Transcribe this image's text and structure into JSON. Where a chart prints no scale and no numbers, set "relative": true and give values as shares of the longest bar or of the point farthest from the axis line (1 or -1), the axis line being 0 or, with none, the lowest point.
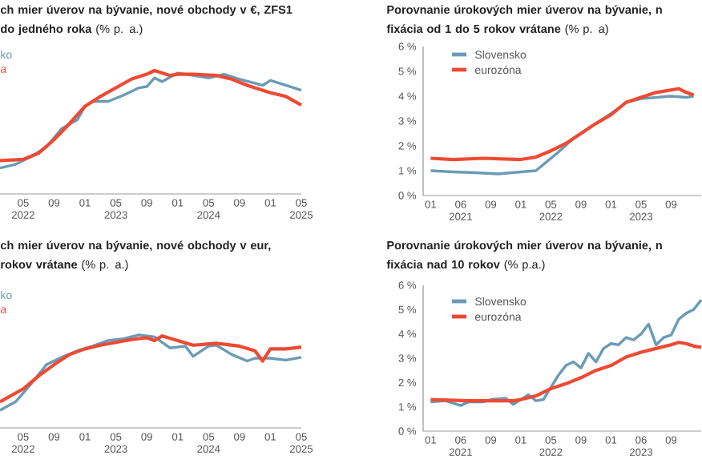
{
  "chart_data": [
    {
      "type": "line",
      "title": "**ch mier úverov na bývanie, nové obchody v €, ZFS1 do jedného roka** (% p. a.)",
      "relative": true,
      "xlim": [
        "2022-02",
        "2025-05"
      ],
      "xticks": [
        {
          "value": "2022-05",
          "label": "05 2022"
        },
        {
          "value": "2022-09",
          "label": "09"
        },
        {
          "value": "2023-01",
          "label": "01"
        },
        {
          "value": "2023-05",
          "label": "05 2023"
        },
        {
          "value": "2023-09",
          "label": "09"
        },
        {
          "value": "2024-01",
          "label": "01"
        },
        {
          "value": "2024-05",
          "label": "05 2024"
        },
        {
          "value": "2024-09",
          "label": "09"
        },
        {
          "value": "2025-01",
          "label": "01"
        },
        {
          "value": "2025-05",
          "label": "05 2025"
        }
      ],
      "series": [
        {
          "name": "ko",
          "color": "#6a9bb5",
          "x": [
            "2022-02",
            "2022-04",
            "2022-06",
            "2022-08",
            "2022-10",
            "2022-12",
            "2023-01",
            "2023-02",
            "2023-04",
            "2023-06",
            "2023-08",
            "2023-09",
            "2023-10",
            "2023-11",
            "2024-01",
            "2024-03",
            "2024-05",
            "2024-07",
            "2024-09",
            "2024-12",
            "2025-01",
            "2025-03",
            "2025-05"
          ],
          "values": [
            0.21,
            0.24,
            0.3,
            0.38,
            0.53,
            0.6,
            0.71,
            0.75,
            0.75,
            0.8,
            0.86,
            0.87,
            0.94,
            0.91,
            0.98,
            0.96,
            0.94,
            0.97,
            0.93,
            0.88,
            0.92,
            0.88,
            0.84
          ]
        },
        {
          "name": "a",
          "color": "#ee4a33",
          "x": [
            "2022-02",
            "2022-05",
            "2022-07",
            "2022-09",
            "2022-11",
            "2023-01",
            "2023-03",
            "2023-05",
            "2023-07",
            "2023-09",
            "2023-10",
            "2023-12",
            "2024-01",
            "2024-03",
            "2024-06",
            "2024-08",
            "2024-10",
            "2025-01",
            "2025-03",
            "2025-05"
          ],
          "values": [
            0.27,
            0.28,
            0.33,
            0.44,
            0.57,
            0.71,
            0.79,
            0.86,
            0.93,
            0.97,
            1.0,
            0.96,
            0.97,
            0.97,
            0.96,
            0.93,
            0.88,
            0.82,
            0.79,
            0.72
          ]
        }
      ]
    },
    {
      "type": "line",
      "title": "**Porovnanie úrokových mier úverov na bývanie, n fixácia od 1 do 5 rokov vrátane** (% p. a)",
      "legend": "top left",
      "xlim": [
        "2020-12",
        "2024-01"
      ],
      "ylim": [
        0,
        6
      ],
      "yticks": [
        {
          "value": 0,
          "label": "0 %"
        },
        {
          "value": 1,
          "label": "1 %"
        },
        {
          "value": 2,
          "label": "2 %"
        },
        {
          "value": 3,
          "label": "3 %"
        },
        {
          "value": 4,
          "label": "4 %"
        },
        {
          "value": 5,
          "label": "5 %"
        },
        {
          "value": 6,
          "label": "6 %"
        }
      ],
      "xticks": [
        {
          "value": "2021-01",
          "label": "01"
        },
        {
          "value": "2021-05",
          "label": "06 2021"
        },
        {
          "value": "2021-09",
          "label": "09"
        },
        {
          "value": "2022-01",
          "label": "01"
        },
        {
          "value": "2022-05",
          "label": "05 2022"
        },
        {
          "value": "2022-09",
          "label": "09"
        },
        {
          "value": "2023-01",
          "label": "01"
        },
        {
          "value": "2023-05",
          "label": "05 2023"
        },
        {
          "value": "2023-09",
          "label": "09"
        }
      ],
      "series": [
        {
          "name": "Slovensko",
          "color": "#6a9bb5",
          "x": [
            "2021-01",
            "2021-04",
            "2021-07",
            "2021-10",
            "2022-01",
            "2022-03",
            "2022-05",
            "2022-06",
            "2022-08",
            "2022-10",
            "2023-01",
            "2023-03",
            "2023-05",
            "2023-07",
            "2023-09",
            "2023-11",
            "2023-12"
          ],
          "values": [
            1.0,
            0.95,
            0.92,
            0.87,
            0.95,
            1.0,
            1.5,
            1.75,
            2.3,
            2.7,
            3.3,
            3.75,
            3.9,
            3.95,
            4.0,
            3.95,
            4.0
          ]
        },
        {
          "name": "eurozóna",
          "color": "#ee4a33",
          "x": [
            "2021-01",
            "2021-04",
            "2021-08",
            "2022-01",
            "2022-03",
            "2022-05",
            "2022-07",
            "2022-09",
            "2022-11",
            "2023-01",
            "2023-03",
            "2023-05",
            "2023-07",
            "2023-09",
            "2023-10",
            "2023-11",
            "2023-12"
          ],
          "values": [
            1.5,
            1.45,
            1.5,
            1.45,
            1.55,
            1.8,
            2.1,
            2.5,
            2.9,
            3.25,
            3.75,
            3.95,
            4.15,
            4.25,
            4.3,
            4.15,
            4.05
          ]
        }
      ]
    },
    {
      "type": "line",
      "title": "**ch mier úverov na bývanie, nové obchody v eur, rokov vrátane** (% p. a.)",
      "relative": true,
      "xlim": [
        "2022-02",
        "2025-05"
      ],
      "xticks": [
        {
          "value": "2022-05",
          "label": "05 2022"
        },
        {
          "value": "2022-09",
          "label": "09"
        },
        {
          "value": "2023-01",
          "label": "01"
        },
        {
          "value": "2023-05",
          "label": "05 2023"
        },
        {
          "value": "2023-09",
          "label": "09"
        },
        {
          "value": "2024-01",
          "label": "01"
        },
        {
          "value": "2024-05",
          "label": "05 2024"
        },
        {
          "value": "2024-09",
          "label": "09"
        },
        {
          "value": "2025-01",
          "label": "01"
        },
        {
          "value": "2025-05",
          "label": "05 2025"
        }
      ],
      "series": [
        {
          "name": "ko",
          "color": "#6a9bb5",
          "x": [
            "2022-02",
            "2022-04",
            "2022-06",
            "2022-08",
            "2022-10",
            "2022-12",
            "2023-02",
            "2023-04",
            "2023-06",
            "2023-08",
            "2023-10",
            "2023-12",
            "2024-02",
            "2024-03",
            "2024-05",
            "2024-06",
            "2024-08",
            "2024-10",
            "2024-11",
            "2025-01",
            "2025-03",
            "2025-05"
          ],
          "values": [
            0.19,
            0.28,
            0.47,
            0.68,
            0.76,
            0.83,
            0.88,
            0.94,
            0.96,
            1.0,
            0.98,
            0.86,
            0.88,
            0.77,
            0.88,
            0.89,
            0.79,
            0.72,
            0.75,
            0.75,
            0.73,
            0.76
          ]
        },
        {
          "name": "a",
          "color": "#ee4a33",
          "x": [
            "2022-02",
            "2022-05",
            "2022-07",
            "2022-09",
            "2022-11",
            "2023-01",
            "2023-03",
            "2023-05",
            "2023-07",
            "2023-09",
            "2023-10",
            "2023-11",
            "2024-01",
            "2024-03",
            "2024-06",
            "2024-09",
            "2024-11",
            "2024-12",
            "2025-01",
            "2025-03",
            "2025-05"
          ],
          "values": [
            0.28,
            0.42,
            0.56,
            0.68,
            0.79,
            0.85,
            0.89,
            0.92,
            0.95,
            0.97,
            0.94,
            0.99,
            0.94,
            0.89,
            0.91,
            0.88,
            0.83,
            0.72,
            0.85,
            0.85,
            0.87
          ]
        }
      ]
    },
    {
      "type": "line",
      "title": "**Porovnanie úrokových mier úverov na bývanie, n fixácia nad 10 rokov** (% p.a.)",
      "legend": "top left",
      "xlim": [
        "2020-12",
        "2024-01"
      ],
      "ylim": [
        0,
        6
      ],
      "yticks": [
        {
          "value": 0,
          "label": "0 %"
        },
        {
          "value": 1,
          "label": "1 %"
        },
        {
          "value": 2,
          "label": "2 %"
        },
        {
          "value": 3,
          "label": "3 %"
        },
        {
          "value": 4,
          "label": "4 %"
        },
        {
          "value": 5,
          "label": "5 %"
        },
        {
          "value": 6,
          "label": "6 %"
        }
      ],
      "xticks": [
        {
          "value": "2021-01",
          "label": "01"
        },
        {
          "value": "2021-05",
          "label": "06 2021"
        },
        {
          "value": "2021-09",
          "label": "09"
        },
        {
          "value": "2022-01",
          "label": "01"
        },
        {
          "value": "2022-05",
          "label": "05 2022"
        },
        {
          "value": "2022-09",
          "label": "09"
        },
        {
          "value": "2023-01",
          "label": "01"
        },
        {
          "value": "2023-05",
          "label": "06 2023"
        },
        {
          "value": "2023-09",
          "label": "09"
        }
      ],
      "series": [
        {
          "name": "Slovensko",
          "color": "#6a9bb5",
          "x": [
            "2021-01",
            "2021-03",
            "2021-05",
            "2021-06",
            "2021-08",
            "2021-09",
            "2021-11",
            "2021-12",
            "2022-01",
            "2022-02",
            "2022-03",
            "2022-04",
            "2022-05",
            "2022-06",
            "2022-07",
            "2022-08",
            "2022-09",
            "2022-10",
            "2022-11",
            "2022-12",
            "2023-01",
            "2023-02",
            "2023-03",
            "2023-04",
            "2023-05",
            "2023-06",
            "2023-07",
            "2023-08",
            "2023-09",
            "2023-10",
            "2023-11",
            "2023-12",
            "2024-01"
          ],
          "values": [
            1.2,
            1.25,
            1.05,
            1.2,
            1.2,
            1.3,
            1.35,
            1.1,
            1.3,
            1.5,
            1.25,
            1.3,
            1.8,
            2.3,
            2.7,
            2.85,
            2.6,
            3.2,
            2.85,
            3.4,
            3.6,
            3.55,
            3.85,
            3.75,
            4.0,
            4.4,
            3.55,
            3.85,
            3.95,
            4.6,
            4.85,
            5.0,
            5.4
          ]
        },
        {
          "name": "eurozóna",
          "color": "#ee4a33",
          "x": [
            "2021-01",
            "2021-06",
            "2021-12",
            "2022-01",
            "2022-03",
            "2022-05",
            "2022-07",
            "2022-09",
            "2022-11",
            "2023-01",
            "2023-03",
            "2023-05",
            "2023-07",
            "2023-09",
            "2023-10",
            "2023-11",
            "2023-12",
            "2024-01"
          ],
          "values": [
            1.3,
            1.25,
            1.25,
            1.3,
            1.45,
            1.75,
            1.95,
            2.2,
            2.5,
            2.7,
            3.05,
            3.25,
            3.4,
            3.55,
            3.65,
            3.6,
            3.5,
            3.45
          ]
        }
      ]
    }
  ]
}
